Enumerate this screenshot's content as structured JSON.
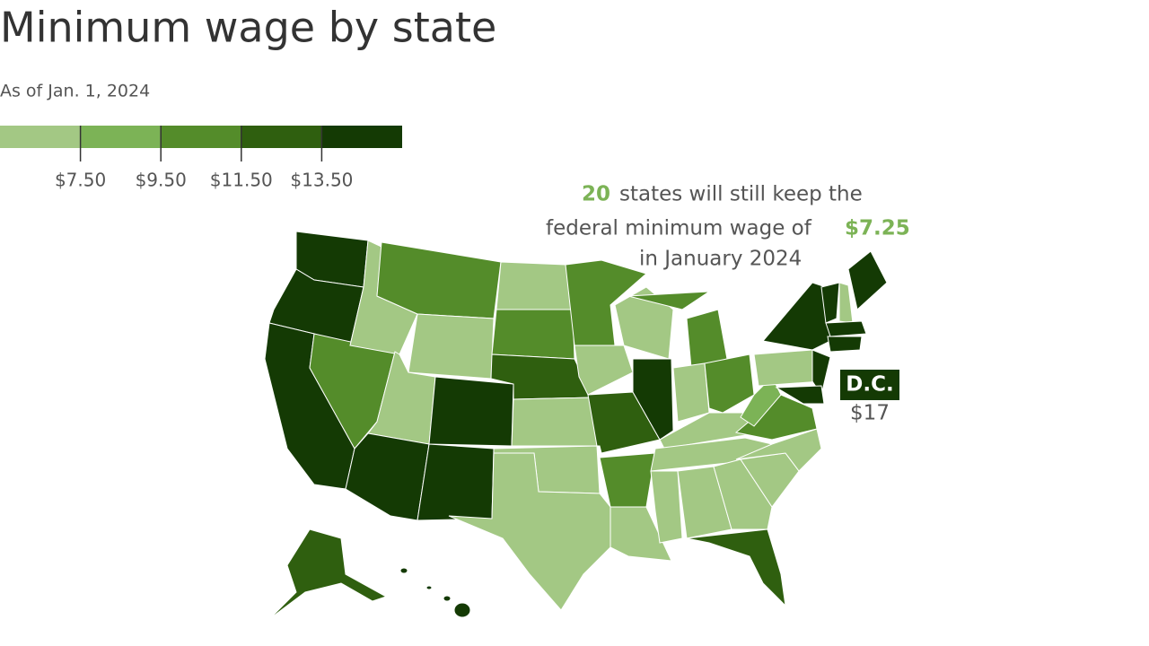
{
  "header": {
    "title": "Minimum wage by state",
    "subtitle": "As of Jan. 1, 2024"
  },
  "legend": {
    "labels": [
      "$7.50",
      "$9.50",
      "$11.50",
      "$13.50"
    ],
    "colors": [
      "#a3c884",
      "#7cb356",
      "#548c2a",
      "#2f5f0f",
      "#143a04"
    ]
  },
  "annotation": {
    "count": "20",
    "line1": "states will still keep the",
    "line2": "federal minimum wage of",
    "wage": "$7.25",
    "line3": "in January 2024"
  },
  "dc": {
    "label": "D.C.",
    "value": "$17"
  }
}
